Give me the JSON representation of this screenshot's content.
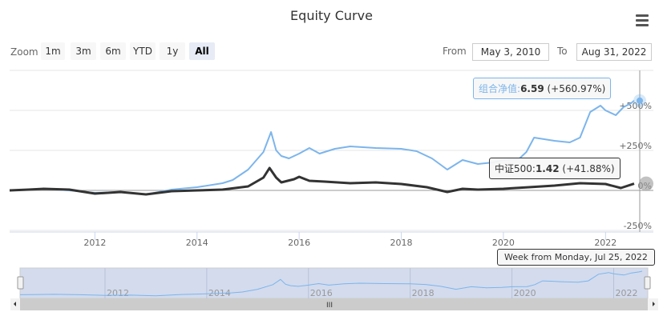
{
  "title": "Equity Curve",
  "zoom": {
    "label": "Zoom",
    "buttons": [
      "1m",
      "3m",
      "6m",
      "YTD",
      "1y",
      "All"
    ],
    "selected": "All"
  },
  "range": {
    "from_label": "From",
    "from": "May 3, 2010",
    "to_label": "To",
    "to": "Aug 31, 2022"
  },
  "colors": {
    "portfolio": "#7cb5ec",
    "benchmark": "#333333",
    "navigator": "#d1d9ec"
  },
  "tooltip": {
    "header": "Week from Monday, Jul 25, 2022",
    "portfolio": {
      "name": "组合净值",
      "value": "6.59",
      "change": "(+560.97%)"
    },
    "benchmark": {
      "name": "中证500",
      "value": "1.42",
      "change": "(+41.88%)"
    }
  },
  "chart_data": {
    "type": "line",
    "title": "Equity Curve",
    "xlim": [
      2010.33,
      2022.67
    ],
    "ylim": [
      -260,
      750
    ],
    "x_ticks": [
      "2012",
      "2014",
      "2016",
      "2018",
      "2020",
      "2022"
    ],
    "y_ticks": [
      "+500%",
      "+250%",
      "0%",
      "-250%"
    ],
    "y_tick_values": [
      500,
      250,
      0,
      -250
    ],
    "navigator_ticks": [
      "2012",
      "2014",
      "2016",
      "2018",
      "2020",
      "2022"
    ],
    "series": [
      {
        "name": "组合净值",
        "points": [
          [
            2010.33,
            0
          ],
          [
            2010.7,
            5
          ],
          [
            2011,
            10
          ],
          [
            2011.5,
            0
          ],
          [
            2012,
            -15
          ],
          [
            2012.5,
            -10
          ],
          [
            2013,
            -25
          ],
          [
            2013.5,
            5
          ],
          [
            2014,
            20
          ],
          [
            2014.5,
            45
          ],
          [
            2014.7,
            65
          ],
          [
            2015,
            130
          ],
          [
            2015.3,
            240
          ],
          [
            2015.45,
            365
          ],
          [
            2015.55,
            250
          ],
          [
            2015.65,
            215
          ],
          [
            2015.8,
            200
          ],
          [
            2016,
            230
          ],
          [
            2016.2,
            265
          ],
          [
            2016.4,
            230
          ],
          [
            2016.7,
            260
          ],
          [
            2017,
            275
          ],
          [
            2017.5,
            265
          ],
          [
            2018,
            260
          ],
          [
            2018.3,
            245
          ],
          [
            2018.6,
            200
          ],
          [
            2018.9,
            130
          ],
          [
            2019.2,
            190
          ],
          [
            2019.5,
            165
          ],
          [
            2019.8,
            175
          ],
          [
            2020,
            190
          ],
          [
            2020.3,
            195
          ],
          [
            2020.45,
            240
          ],
          [
            2020.6,
            330
          ],
          [
            2020.8,
            320
          ],
          [
            2021,
            310
          ],
          [
            2021.3,
            300
          ],
          [
            2021.5,
            330
          ],
          [
            2021.7,
            490
          ],
          [
            2021.9,
            530
          ],
          [
            2022,
            500
          ],
          [
            2022.2,
            470
          ],
          [
            2022.35,
            520
          ],
          [
            2022.5,
            545
          ],
          [
            2022.56,
            561
          ]
        ]
      },
      {
        "name": "中证500",
        "points": [
          [
            2010.33,
            0
          ],
          [
            2010.7,
            5
          ],
          [
            2011,
            10
          ],
          [
            2011.5,
            5
          ],
          [
            2012,
            -20
          ],
          [
            2012.5,
            -10
          ],
          [
            2013,
            -25
          ],
          [
            2013.5,
            -5
          ],
          [
            2014,
            0
          ],
          [
            2014.5,
            5
          ],
          [
            2015,
            25
          ],
          [
            2015.3,
            80
          ],
          [
            2015.42,
            140
          ],
          [
            2015.55,
            80
          ],
          [
            2015.65,
            50
          ],
          [
            2015.9,
            70
          ],
          [
            2016,
            85
          ],
          [
            2016.2,
            60
          ],
          [
            2016.5,
            55
          ],
          [
            2017,
            45
          ],
          [
            2017.5,
            50
          ],
          [
            2018,
            40
          ],
          [
            2018.5,
            20
          ],
          [
            2018.9,
            -10
          ],
          [
            2019.2,
            10
          ],
          [
            2019.5,
            5
          ],
          [
            2020,
            10
          ],
          [
            2020.5,
            20
          ],
          [
            2021,
            30
          ],
          [
            2021.5,
            45
          ],
          [
            2022,
            40
          ],
          [
            2022.3,
            15
          ],
          [
            2022.56,
            42
          ]
        ]
      }
    ]
  }
}
